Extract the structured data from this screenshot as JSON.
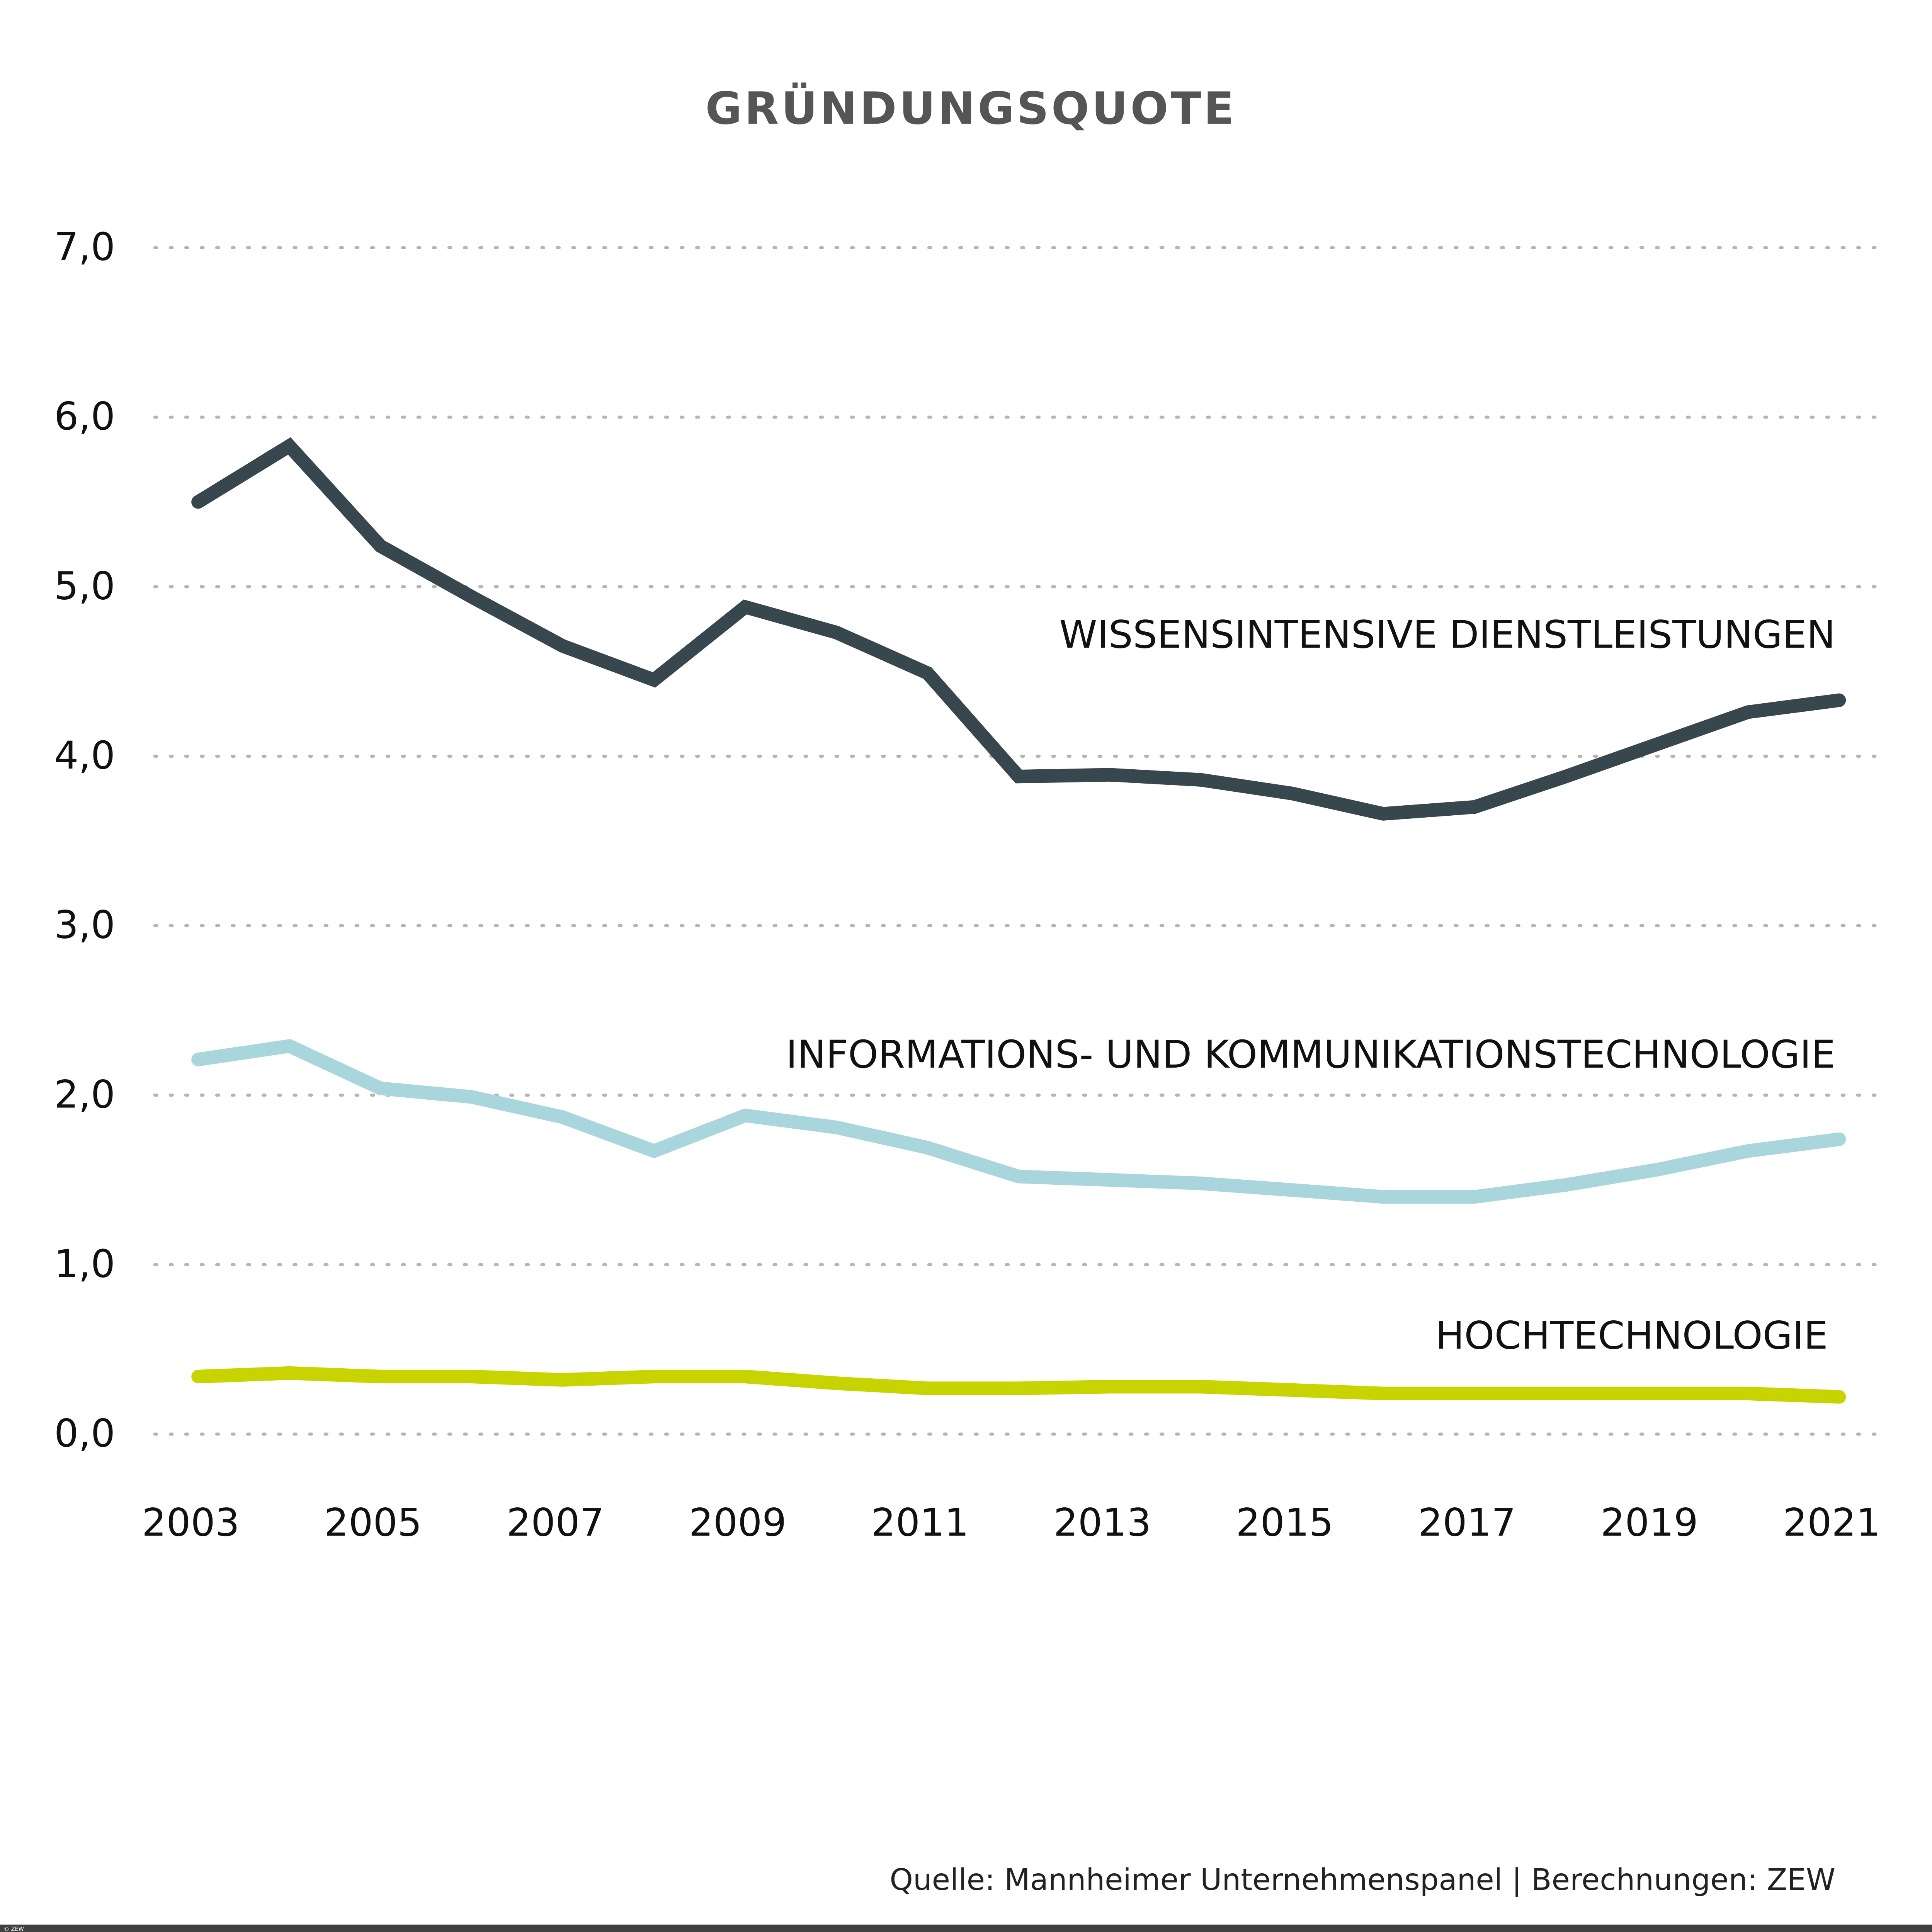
{
  "chart_data": {
    "type": "line",
    "title": "GRÜNDUNGSQUOTE",
    "xlabel": "",
    "ylabel": "",
    "x": [
      2003,
      2004,
      2005,
      2006,
      2007,
      2008,
      2009,
      2010,
      2011,
      2012,
      2013,
      2014,
      2015,
      2016,
      2017,
      2018,
      2019,
      2020,
      2021
    ],
    "x_tick_labels": [
      "2003",
      "2005",
      "2007",
      "2009",
      "2011",
      "2013",
      "2015",
      "2017",
      "2019",
      "2021"
    ],
    "y_tick_labels": [
      "0,0",
      "1,0",
      "2,0",
      "3,0",
      "4,0",
      "5,0",
      "6,0",
      "7,0"
    ],
    "ylim": [
      0,
      7
    ],
    "grid": "horizontal dotted",
    "legend": "inline labels",
    "series": [
      {
        "name": "WISSENSINTENSIVE DIENSTLEISTUNGEN",
        "color": "#38474e",
        "values": [
          5.5,
          5.83,
          5.24,
          4.94,
          4.65,
          4.45,
          4.88,
          4.73,
          4.49,
          3.88,
          3.89,
          3.86,
          3.78,
          3.66,
          3.7,
          3.88,
          4.07,
          4.26,
          4.33
        ]
      },
      {
        "name": "INFORMATIONS- UND KOMMUNIKATIONSTECHNOLOGIE",
        "color": "#a8d6dc",
        "values": [
          2.21,
          2.29,
          2.04,
          1.99,
          1.87,
          1.67,
          1.88,
          1.81,
          1.69,
          1.52,
          1.5,
          1.48,
          1.44,
          1.4,
          1.4,
          1.47,
          1.56,
          1.67,
          1.74
        ]
      },
      {
        "name": "HOCHTECHNOLOGIE",
        "color": "#c8d400",
        "values": [
          0.34,
          0.36,
          0.34,
          0.34,
          0.32,
          0.34,
          0.34,
          0.3,
          0.27,
          0.27,
          0.28,
          0.28,
          0.26,
          0.24,
          0.24,
          0.24,
          0.24,
          0.24,
          0.22
        ]
      }
    ],
    "source": "Quelle: Mannheimer Unternehmenspanel | Berechnungen: ZEW"
  },
  "footer": {
    "copyright": "© ZEW",
    "bar_color": "#404040"
  }
}
